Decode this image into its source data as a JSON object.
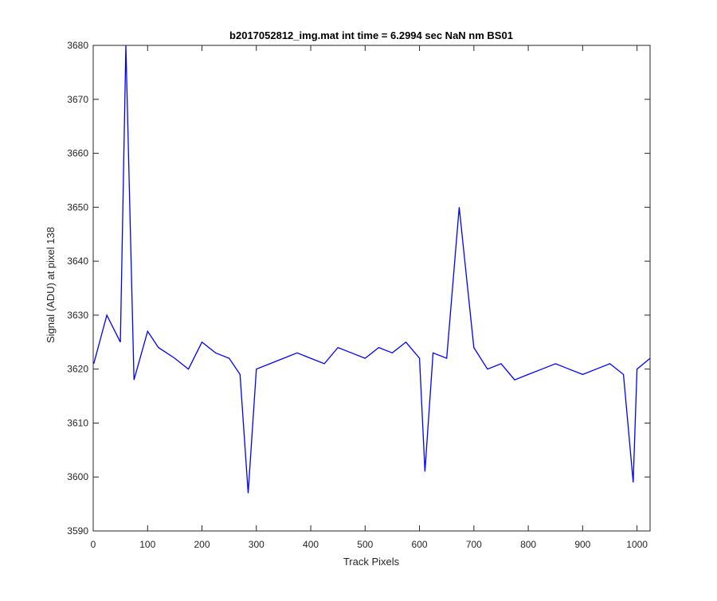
{
  "chart_data": {
    "type": "line",
    "title": "b2017052812_img.mat int time = 6.2994 sec  NaN nm BS01",
    "xlabel": "Track Pixels",
    "ylabel": "Signal (ADU) at pixel 138",
    "xlim": [
      0,
      1024
    ],
    "ylim": [
      3590,
      3680
    ],
    "xticks": [
      "0",
      "100",
      "200",
      "300",
      "400",
      "500",
      "600",
      "700",
      "800",
      "900",
      "1000"
    ],
    "yticks": [
      "3590",
      "3600",
      "3610",
      "3620",
      "3630",
      "3640",
      "3650",
      "3660",
      "3670",
      "3680"
    ],
    "grid": false,
    "legend": "none",
    "series": [
      {
        "color": "#0000ff",
        "x": [
          1,
          25,
          50,
          60,
          75,
          100,
          120,
          150,
          175,
          200,
          225,
          250,
          270,
          285,
          300,
          325,
          350,
          375,
          400,
          425,
          450,
          475,
          500,
          525,
          550,
          575,
          600,
          610,
          625,
          650,
          673,
          700,
          725,
          750,
          775,
          800,
          825,
          850,
          875,
          900,
          925,
          950,
          975,
          993,
          1000,
          1024
        ],
        "y": [
          3621,
          3630,
          3625,
          3680,
          3618,
          3627,
          3624,
          3622,
          3620,
          3625,
          3623,
          3622,
          3619,
          3597,
          3620,
          3621,
          3622,
          3623,
          3622,
          3621,
          3624,
          3623,
          3622,
          3624,
          3623,
          3625,
          3622,
          3601,
          3623,
          3622,
          3650,
          3624,
          3620,
          3621,
          3618,
          3619,
          3620,
          3621,
          3620,
          3619,
          3620,
          3621,
          3619,
          3599,
          3620,
          3622
        ]
      }
    ]
  }
}
